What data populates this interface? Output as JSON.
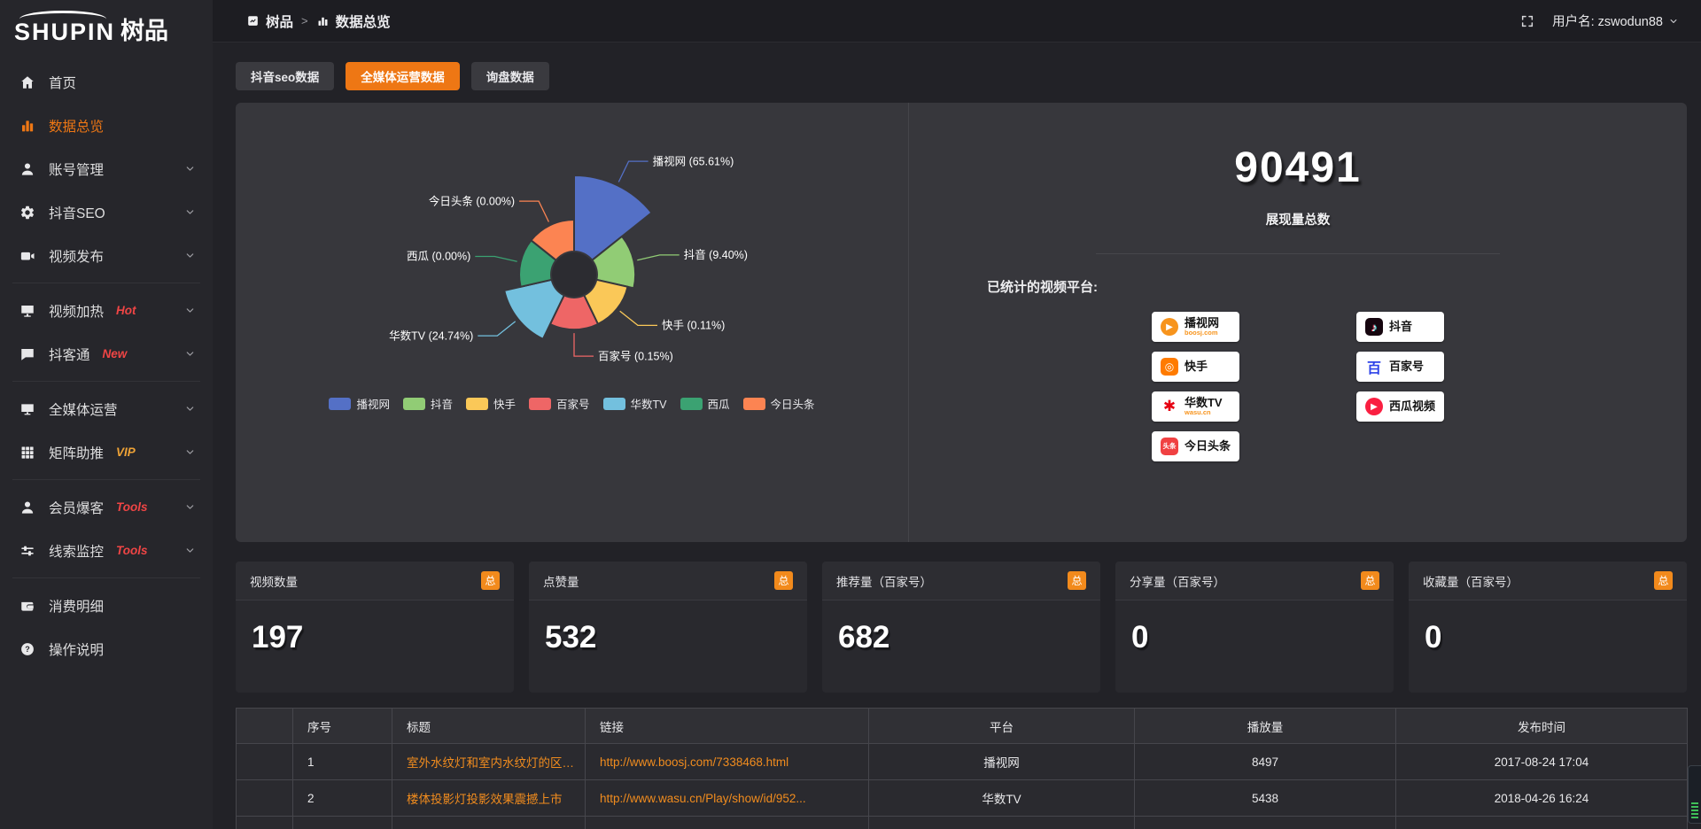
{
  "theme": {
    "accent_orange": "#ee7714",
    "badge_orange": "#f28a1c",
    "tag_red": "#f04545",
    "tag_gold": "#eea236",
    "link_orange": "#f18c1e",
    "panel_bg": "#37373c",
    "sidebar_bg": "#26262b"
  },
  "logo": {
    "brand": "SHUPIN",
    "suffix": "树品"
  },
  "sidebar": {
    "items": [
      {
        "label": "首页",
        "icon": "home",
        "active": false,
        "chevron": false,
        "divider_after": false
      },
      {
        "label": "数据总览",
        "icon": "bar-chart",
        "active": true,
        "chevron": false,
        "divider_after": false
      },
      {
        "label": "账号管理",
        "icon": "user",
        "active": false,
        "chevron": true,
        "divider_after": false
      },
      {
        "label": "抖音SEO",
        "icon": "gear",
        "active": false,
        "chevron": true,
        "divider_after": false
      },
      {
        "label": "视频发布",
        "icon": "video",
        "active": false,
        "chevron": true,
        "divider_after": true
      },
      {
        "label": "视频加热",
        "icon": "screen-play",
        "tag": "Hot",
        "tag_style": "red",
        "active": false,
        "chevron": true,
        "divider_after": false
      },
      {
        "label": "抖客通",
        "icon": "chat",
        "tag": "New",
        "tag_style": "red",
        "active": false,
        "chevron": true,
        "divider_after": true
      },
      {
        "label": "全媒体运营",
        "icon": "monitor",
        "active": false,
        "chevron": true,
        "divider_after": false
      },
      {
        "label": "矩阵助推",
        "icon": "grid",
        "tag": "VIP",
        "tag_style": "gold",
        "active": false,
        "chevron": true,
        "divider_after": true
      },
      {
        "label": "会员爆客",
        "icon": "user-solid",
        "tag": "Tools",
        "tag_style": "red",
        "active": false,
        "chevron": true,
        "divider_after": false
      },
      {
        "label": "线索监控",
        "icon": "sliders",
        "tag": "Tools",
        "tag_style": "red",
        "active": false,
        "chevron": true,
        "divider_after": true
      },
      {
        "label": "消费明细",
        "icon": "wallet",
        "active": false,
        "chevron": false,
        "divider_after": false
      },
      {
        "label": "操作说明",
        "icon": "help",
        "active": false,
        "chevron": false,
        "divider_after": false
      }
    ]
  },
  "topbar": {
    "breadcrumb": [
      {
        "icon": "crumb-app",
        "label": "树品"
      },
      {
        "icon": "crumb-chart",
        "label": "数据总览"
      }
    ],
    "separator": ">",
    "user_label": "用户名: zswodun88"
  },
  "tabs": [
    {
      "label": "抖音seo数据",
      "active": false
    },
    {
      "label": "全媒体运营数据",
      "active": true
    },
    {
      "label": "询盘数据",
      "active": false
    }
  ],
  "chart_data": {
    "type": "pie",
    "style": "nightingale-rose",
    "title": "",
    "label_format": "{name} ({percent}%)",
    "legend_position": "bottom",
    "series": [
      {
        "name": "播视网",
        "percent": 65.61,
        "color": "#5470c6"
      },
      {
        "name": "抖音",
        "percent": 9.4,
        "color": "#91cc75"
      },
      {
        "name": "快手",
        "percent": 0.11,
        "color": "#fac858"
      },
      {
        "name": "百家号",
        "percent": 0.15,
        "color": "#ee6666"
      },
      {
        "name": "华数TV",
        "percent": 24.74,
        "color": "#73c0de"
      },
      {
        "name": "西瓜",
        "percent": 0.0,
        "color": "#3ba272"
      },
      {
        "name": "今日头条",
        "percent": 0.0,
        "color": "#fc8452"
      }
    ]
  },
  "summary": {
    "value": "90491",
    "label": "展现量总数"
  },
  "platforms": {
    "title": "已统计的视频平台:",
    "columns": [
      [
        {
          "name": "播视网",
          "sub": "boosj.com",
          "icon": "boosj"
        },
        {
          "name": "快手",
          "icon": "kuaishou"
        },
        {
          "name": "华数TV",
          "sub": "wasu.cn",
          "icon": "wasu"
        },
        {
          "name": "今日头条",
          "icon": "toutiao"
        }
      ],
      [
        {
          "name": "抖音",
          "icon": "douyin"
        },
        {
          "name": "百家号",
          "icon": "baijiahao"
        },
        {
          "name": "西瓜视频",
          "icon": "xigua"
        }
      ]
    ]
  },
  "cards": [
    {
      "title": "视频数量",
      "badge": "总",
      "value": "197"
    },
    {
      "title": "点赞量",
      "badge": "总",
      "value": "532"
    },
    {
      "title": "推荐量（百家号）",
      "badge": "总",
      "value": "682"
    },
    {
      "title": "分享量（百家号）",
      "badge": "总",
      "value": "0"
    },
    {
      "title": "收藏量（百家号）",
      "badge": "总",
      "value": "0"
    }
  ],
  "table": {
    "columns": [
      "",
      "序号",
      "标题",
      "链接",
      "平台",
      "播放量",
      "发布时间"
    ],
    "rows": [
      {
        "no": "1",
        "title": "室外水纹灯和室内水纹灯的区别和简介",
        "link": "http://www.boosj.com/7338468.html",
        "platform": "播视网",
        "plays": "8497",
        "time": "2017-08-24 17:04"
      },
      {
        "no": "2",
        "title": "楼体投影灯投影效果震撼上市",
        "link": "http://www.wasu.cn/Play/show/id/952...",
        "platform": "华数TV",
        "plays": "5438",
        "time": "2018-04-26 16:24"
      }
    ]
  }
}
